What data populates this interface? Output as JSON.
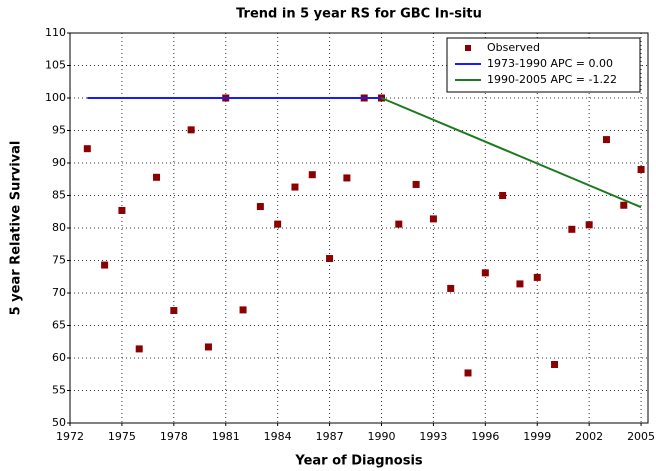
{
  "chart_data": {
    "type": "scatter",
    "title": "Trend in 5 year RS for GBC In-situ",
    "x_label": "Year of Diagnosis",
    "y_label": "5 year Relative Survival",
    "xlim": [
      1972,
      2005.4
    ],
    "ylim": [
      50,
      110
    ],
    "xticks": [
      1972,
      1975,
      1978,
      1981,
      1984,
      1987,
      1990,
      1993,
      1996,
      1999,
      2002,
      2005
    ],
    "yticks": [
      50,
      55,
      60,
      65,
      70,
      75,
      80,
      85,
      90,
      95,
      100,
      105,
      110
    ],
    "grid": true,
    "legend": "upper right",
    "series": [
      {
        "name": "Observed",
        "color": "#8b0000",
        "mode": "markers",
        "x": [
          1973,
          1974,
          1975,
          1976,
          1977,
          1978,
          1979,
          1980,
          1981,
          1982,
          1983,
          1984,
          1985,
          1986,
          1987,
          1988,
          1989,
          1990,
          1991,
          1992,
          1993,
          1994,
          1995,
          1996,
          1997,
          1998,
          1999,
          2000,
          2001,
          2002,
          2003,
          2004,
          2005
        ],
        "values": [
          92.2,
          74.3,
          82.7,
          61.4,
          87.8,
          67.3,
          95.1,
          61.7,
          100,
          67.4,
          83.3,
          80.6,
          86.3,
          88.2,
          75.3,
          87.7,
          100,
          100,
          80.6,
          86.7,
          81.4,
          70.7,
          57.7,
          73.1,
          85,
          71.4,
          72.4,
          59,
          79.8,
          80.5,
          93.6,
          83.5,
          89
        ]
      },
      {
        "name": "1973-1990 APC  =  0.00",
        "color": "#1a1aff",
        "mode": "line",
        "x": [
          1973,
          1990
        ],
        "values": [
          100,
          100
        ]
      },
      {
        "name": "1990-2005 APC  = -1.22",
        "color": "#1e7a1e",
        "mode": "line",
        "x": [
          1990,
          2005
        ],
        "values": [
          100,
          83.2
        ]
      }
    ]
  }
}
